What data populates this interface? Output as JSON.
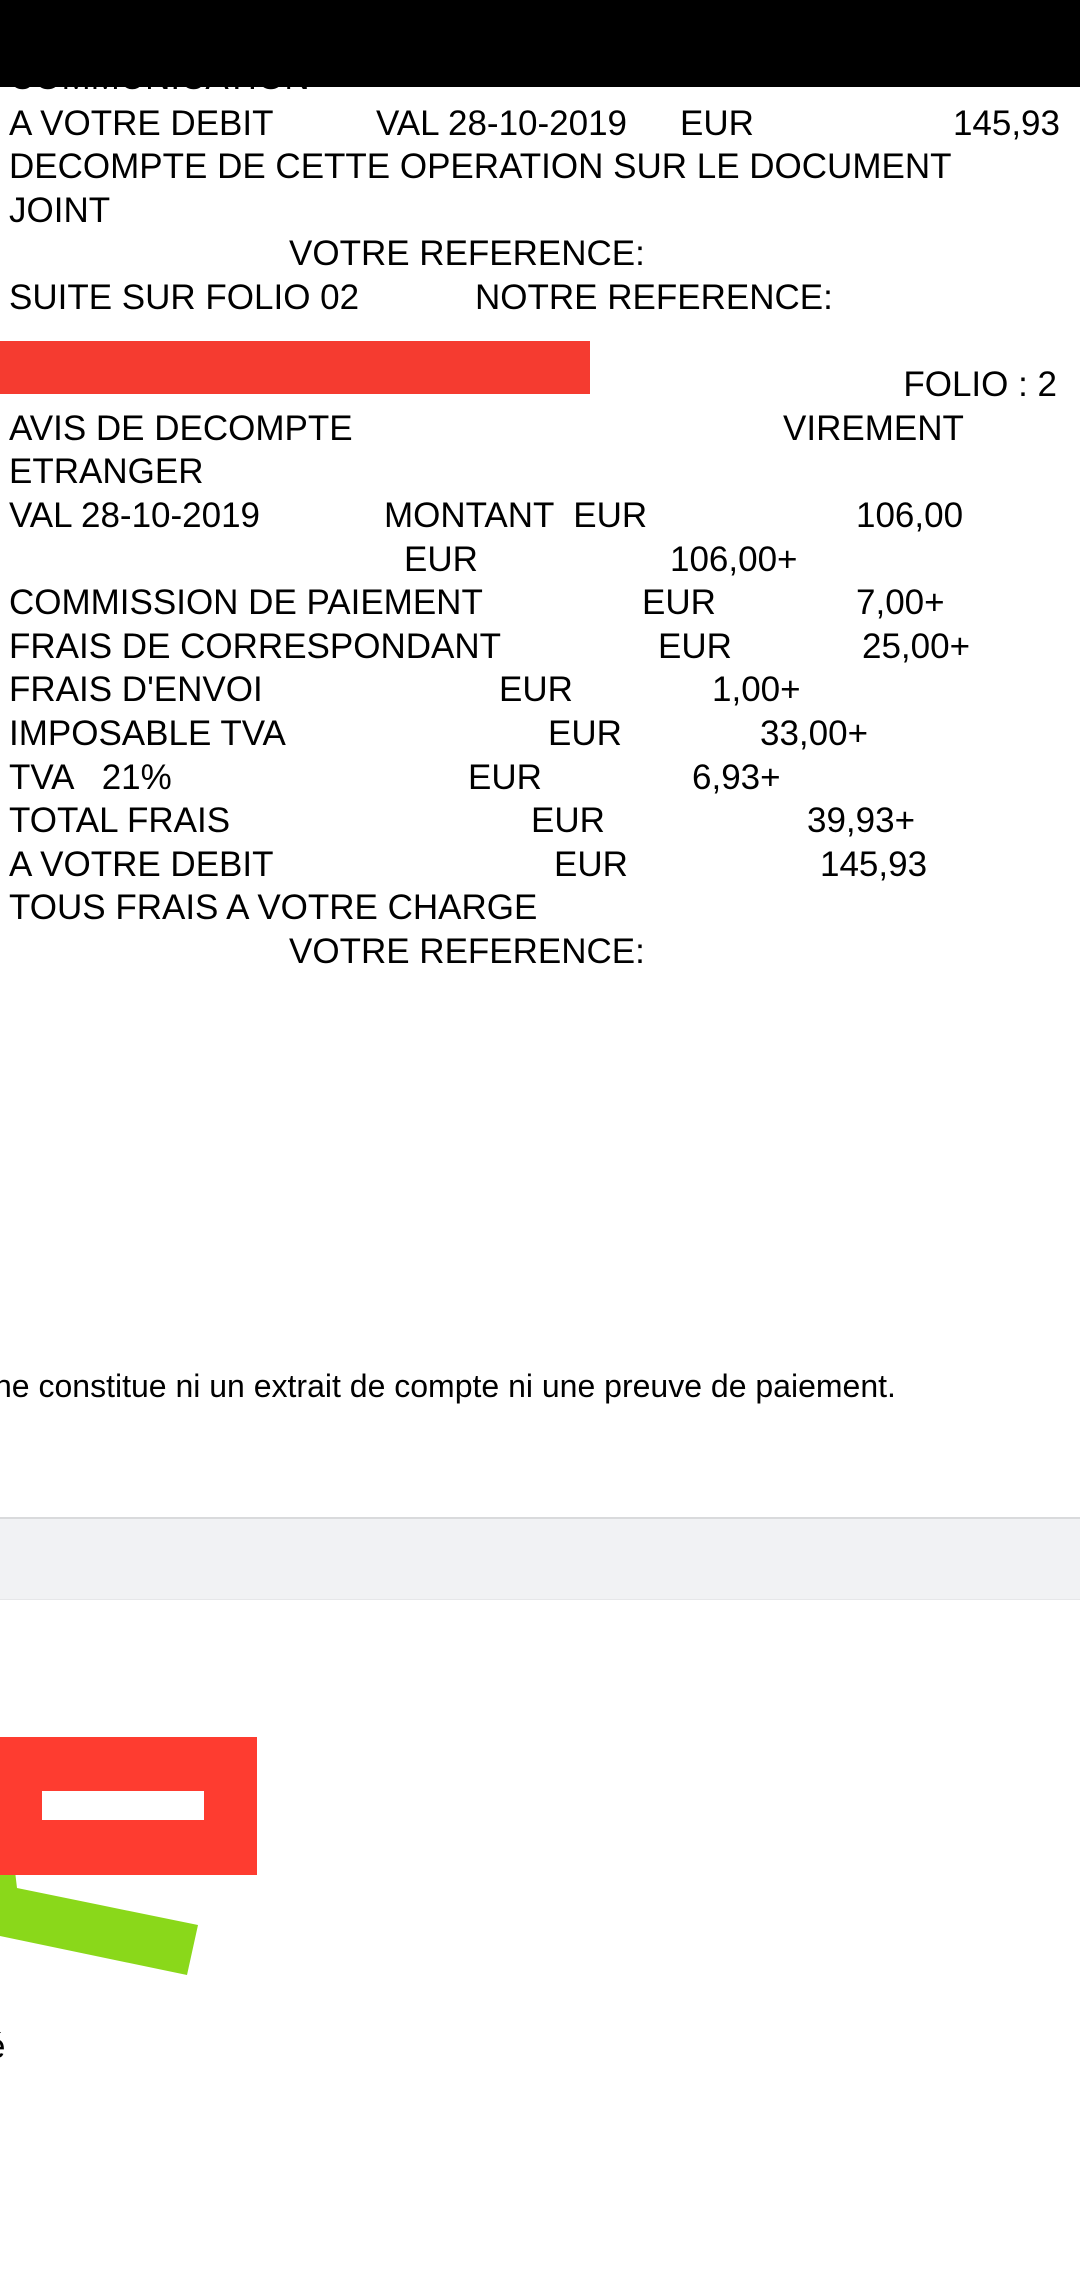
{
  "document": {
    "clipped_top_line": "COMMUNICATION",
    "l1": {
      "a": "A VOTRE DEBIT",
      "b": "VAL 28-10-2019",
      "c": "EUR",
      "d": "145,93"
    },
    "l2": "DECOMPTE DE CETTE OPERATION SUR LE DOCUMENT",
    "l3": "JOINT",
    "l4": "VOTRE REFERENCE:",
    "l5": {
      "a": "SUITE SUR FOLIO 02",
      "b": "NOTRE REFERENCE:"
    },
    "folio": "FOLIO : 2",
    "l8": {
      "a": "AVIS DE DECOMPTE",
      "b": "VIREMENT"
    },
    "l9": "ETRANGER",
    "l10": {
      "a": "VAL 28-10-2019",
      "b": "MONTANT  EUR",
      "c": "106,00"
    },
    "l11": {
      "a": "EUR",
      "b": "106,00+"
    },
    "l12": {
      "a": "COMMISSION DE PAIEMENT",
      "b": "EUR",
      "c": "7,00+"
    },
    "l13": {
      "a": "FRAIS DE CORRESPONDANT",
      "b": "EUR",
      "c": "25,00+"
    },
    "l14": {
      "a": "FRAIS D'ENVOI",
      "b": "EUR",
      "c": "1,00+"
    },
    "l15": {
      "a": "IMPOSABLE TVA",
      "b": "EUR",
      "c": "33,00+"
    },
    "l16": {
      "a": "TVA   21%",
      "b": "EUR",
      "c": "6,93+"
    },
    "l17": {
      "a": "TOTAL FRAIS",
      "b": "EUR",
      "c": "39,93+"
    },
    "l18": {
      "a": "A VOTRE DEBIT",
      "b": "EUR",
      "c": "145,93"
    },
    "l19": "TOUS FRAIS A VOTRE CHARGE",
    "l20": "VOTRE REFERENCE:"
  },
  "footer_note": "ne constitue ni un extrait de compte ni une preuve de paiement.",
  "bottom_fragment": "é",
  "colors": {
    "redaction_red": "#fe3c30",
    "highlight_green": "#8ad81a",
    "band_gray": "#f1f2f4"
  }
}
